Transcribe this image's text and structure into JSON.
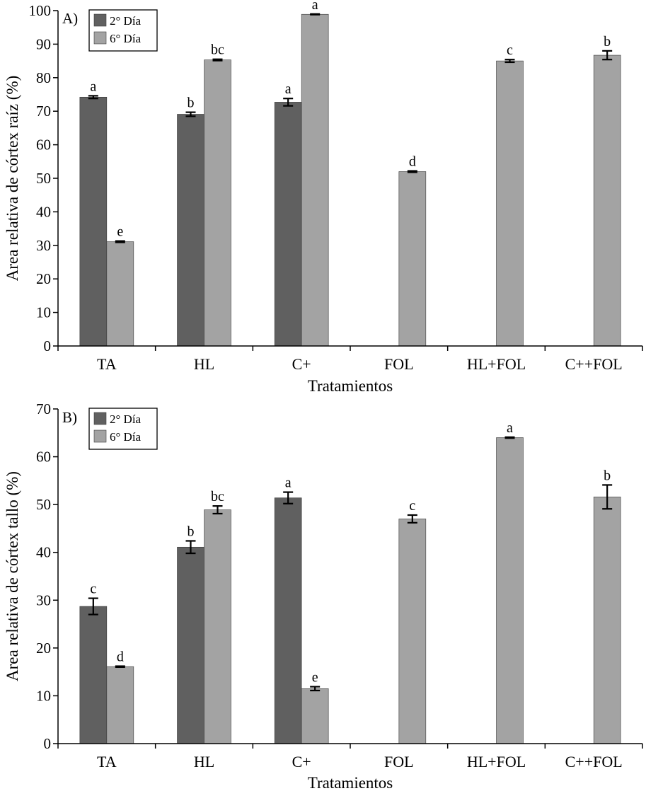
{
  "colors": {
    "day2": "#606060",
    "day6": "#a3a3a3",
    "axis": "#000000"
  },
  "chart_data": [
    {
      "type": "bar",
      "panel_label": "A)",
      "categories": [
        "TA",
        "HL",
        "C+",
        "FOL",
        "HL+FOL",
        "C++FOL"
      ],
      "xlabel": "Tratamientos",
      "ylabel": "Area relativa de córtex raíz (%)",
      "ylim": [
        0,
        100
      ],
      "yticks": [
        0,
        10,
        20,
        30,
        40,
        50,
        60,
        70,
        80,
        90,
        100
      ],
      "legend": {
        "placement": "top-left",
        "entries": [
          "2° Día",
          "6° Día"
        ]
      },
      "series": [
        {
          "name": "2° Día",
          "values": [
            74.2,
            69.1,
            72.7,
            null,
            null,
            null
          ],
          "errors": [
            0.4,
            0.6,
            1.1,
            null,
            null,
            null
          ],
          "letters": [
            "a",
            "b",
            "a",
            null,
            null,
            null
          ]
        },
        {
          "name": "6° Día",
          "values": [
            31.1,
            85.3,
            98.9,
            52.0,
            85.0,
            86.7
          ],
          "errors": [
            0.2,
            0.2,
            0.1,
            0.2,
            0.4,
            1.3
          ],
          "letters": [
            "e",
            "bc",
            "a",
            "d",
            "c",
            "b"
          ]
        }
      ]
    },
    {
      "type": "bar",
      "panel_label": "B)",
      "categories": [
        "TA",
        "HL",
        "C+",
        "FOL",
        "HL+FOL",
        "C++FOL"
      ],
      "xlabel": "Tratamientos",
      "ylabel": "Area relativa de córtex tallo (%)",
      "ylim": [
        0,
        70
      ],
      "yticks": [
        0,
        10,
        20,
        30,
        40,
        50,
        60,
        70
      ],
      "legend": {
        "placement": "top-left",
        "entries": [
          "2° Día",
          "6° Día"
        ]
      },
      "series": [
        {
          "name": "2° Día",
          "values": [
            28.7,
            41.1,
            51.4,
            null,
            null,
            null
          ],
          "errors": [
            1.7,
            1.3,
            1.2,
            null,
            null,
            null
          ],
          "letters": [
            "c",
            "b",
            "a",
            null,
            null,
            null
          ]
        },
        {
          "name": "6° Día",
          "values": [
            16.1,
            48.9,
            11.5,
            47.0,
            64.0,
            51.6
          ],
          "errors": [
            0.1,
            0.8,
            0.4,
            0.8,
            0.1,
            2.5
          ],
          "letters": [
            "d",
            "bc",
            "e",
            "c",
            "a",
            "b"
          ]
        }
      ]
    }
  ]
}
